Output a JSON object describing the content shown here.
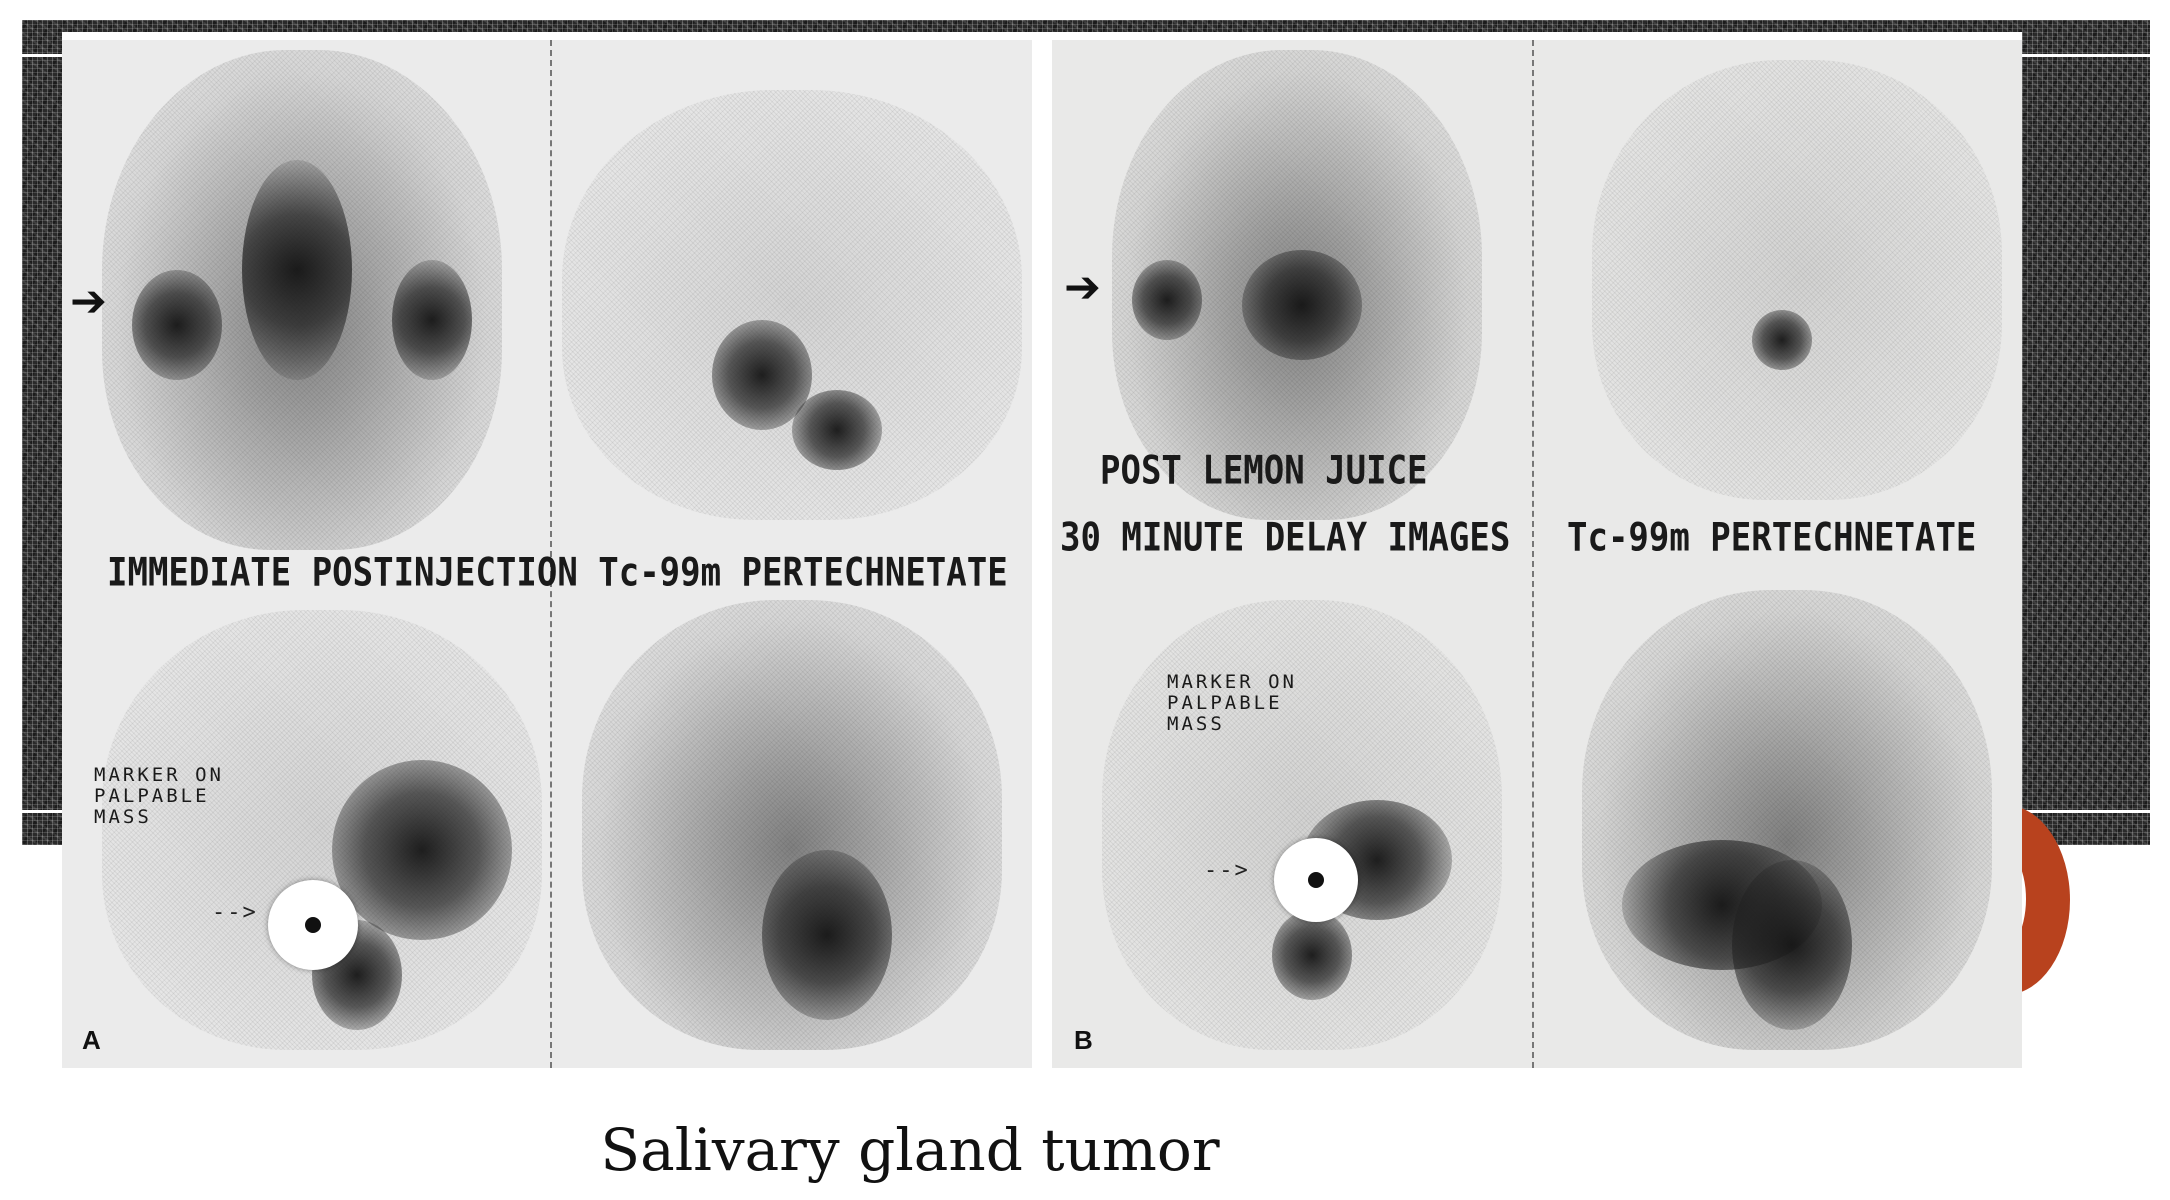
{
  "caption": "Salivary gland tumor",
  "colors": {
    "banner": "#2a2a2a",
    "ornament": "#b8421e",
    "panel_bg": "#ebebeb"
  },
  "panel_a": {
    "letter": "A",
    "label_main": "IMMEDIATE POSTINJECTION Tc-99m PERTECHNETATE",
    "marker_text": "MARKER ON\nPALPABLE\nMASS",
    "arrow_icon": "arrow-right-icon"
  },
  "panel_b": {
    "letter": "B",
    "label_lemon": "POST LEMON JUICE",
    "label_delay": "30 MINUTE DELAY IMAGES",
    "label_tc": "Tc-99m PERTECHNETATE",
    "marker_text": "MARKER ON\nPALPABLE\nMASS",
    "arrow_icon": "arrow-right-icon"
  }
}
